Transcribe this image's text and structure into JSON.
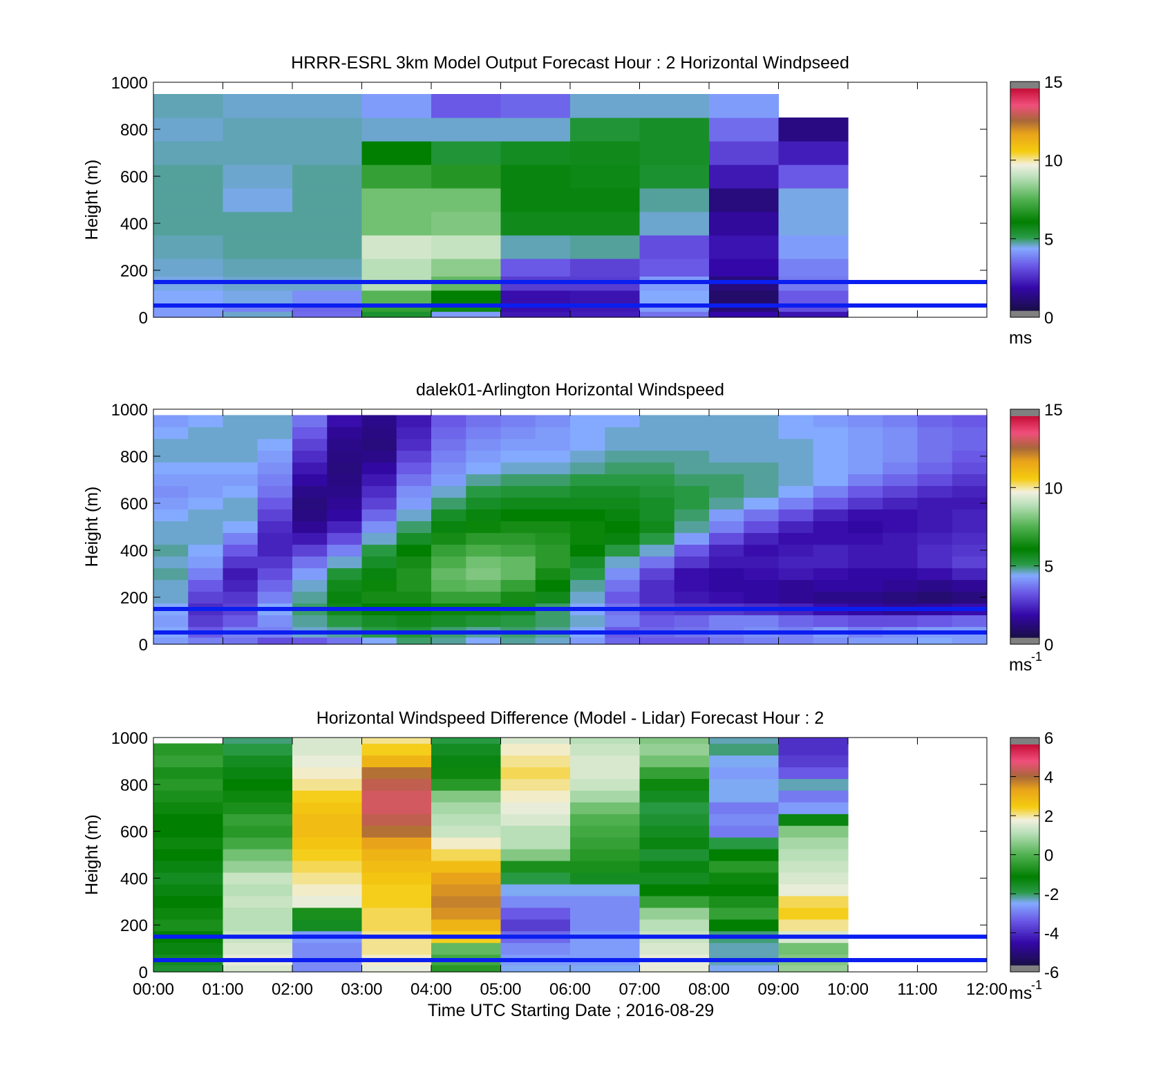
{
  "figure": {
    "xlabel": "Time UTC  Starting Date ; 2016-08-29",
    "x_ticks": [
      "00:00",
      "01:00",
      "02:00",
      "03:00",
      "04:00",
      "05:00",
      "06:00",
      "07:00",
      "08:00",
      "09:00",
      "10:00",
      "11:00",
      "12:00"
    ],
    "y_ticks": [
      "0",
      "200",
      "400",
      "600",
      "800",
      "1000"
    ],
    "guide_line_heights_m": [
      50,
      150
    ],
    "colors": {
      "guide_line": "#0a1ef0",
      "missing": "#808080"
    }
  },
  "colormap": [
    [
      0,
      "#1a0e4a"
    ],
    [
      0.1,
      "#3408a8"
    ],
    [
      0.2,
      "#6a58e6"
    ],
    [
      0.28,
      "#84aaff"
    ],
    [
      0.33,
      "#2a9a46"
    ],
    [
      0.4,
      "#017f01"
    ],
    [
      0.5,
      "#4fb04f"
    ],
    [
      0.6,
      "#b8dfb8"
    ],
    [
      0.66,
      "#f2f0e0"
    ],
    [
      0.72,
      "#f5cc10"
    ],
    [
      0.8,
      "#e9a31a"
    ],
    [
      0.86,
      "#a8673a"
    ],
    [
      0.93,
      "#f14f7c"
    ],
    [
      1,
      "#c8133c"
    ]
  ],
  "chart_data": [
    {
      "type": "heatmap",
      "title": "HRRR-ESRL 3km Model Output   Forecast Hour : 2 Horizontal Windpseed",
      "xlabel": "",
      "ylabel": "Height (m)",
      "x_range": [
        "00:00",
        "12:00"
      ],
      "ylim": [
        0,
        1000
      ],
      "colorbar": {
        "range": [
          0,
          15
        ],
        "ticks": [
          "0",
          "5",
          "10",
          "15"
        ],
        "unit": "ms"
      },
      "time_bins": [
        "00:00",
        "01:00",
        "02:00",
        "03:00",
        "04:00",
        "05:00",
        "06:00",
        "07:00",
        "08:00",
        "09:00"
      ],
      "height_bins_m": [
        10,
        40,
        80,
        150,
        200,
        300,
        400,
        500,
        600,
        700,
        800,
        900,
        1000
      ],
      "values": [
        [
          4.0,
          4.4,
          3.3,
          5.3,
          4.0,
          1.8,
          1.9,
          3.4,
          1.5,
          1.7
        ],
        [
          4.0,
          3.6,
          3.2,
          7.0,
          5.7,
          1.6,
          1.8,
          4.0,
          0.7,
          2.8
        ],
        [
          4.2,
          4.3,
          3.8,
          7.6,
          6.0,
          1.6,
          1.7,
          4.2,
          0.5,
          3.0
        ],
        [
          4.3,
          4.4,
          4.4,
          9.0,
          7.8,
          2.5,
          2.5,
          4.0,
          0.8,
          3.5
        ],
        [
          4.4,
          4.5,
          4.5,
          9.0,
          8.4,
          3.0,
          2.6,
          3.0,
          1.5,
          3.6
        ],
        [
          4.5,
          4.6,
          4.6,
          9.4,
          9.2,
          4.5,
          4.6,
          2.8,
          1.7,
          4.0
        ],
        [
          4.6,
          4.6,
          4.6,
          8.0,
          8.2,
          5.6,
          5.6,
          4.4,
          1.3,
          4.3
        ],
        [
          4.6,
          4.3,
          4.6,
          8.0,
          8.0,
          5.8,
          5.8,
          4.6,
          0.8,
          4.3
        ],
        [
          4.6,
          4.4,
          4.6,
          7.0,
          6.7,
          5.8,
          5.7,
          5.3,
          1.8,
          3.0
        ],
        [
          4.5,
          4.5,
          4.5,
          6.0,
          5.2,
          5.5,
          5.6,
          5.4,
          2.6,
          1.9
        ],
        [
          4.4,
          4.5,
          4.5,
          4.4,
          4.4,
          4.4,
          5.2,
          5.4,
          3.3,
          0.9
        ],
        [
          4.5,
          4.4,
          4.4,
          4.0,
          3.0,
          3.2,
          4.4,
          4.4,
          4.0,
          null
        ]
      ]
    },
    {
      "type": "heatmap",
      "title": "dalek01-Arlington  Horizontal Windspeed",
      "xlabel": "",
      "ylabel": "Height (m)",
      "x_range": [
        "00:00",
        "12:00"
      ],
      "ylim": [
        0,
        1000
      ],
      "colorbar": {
        "range": [
          0,
          15
        ],
        "ticks": [
          "0",
          "5",
          "10",
          "15"
        ],
        "unit": "ms",
        "unit_exponent": "-1"
      },
      "time_bins": [
        "00:00",
        "00:30",
        "01:00",
        "01:30",
        "02:00",
        "02:30",
        "03:00",
        "03:30",
        "04:00",
        "04:30",
        "05:00",
        "05:30",
        "06:00",
        "06:30",
        "07:00",
        "07:30",
        "08:00",
        "08:30",
        "09:00",
        "09:30",
        "10:00",
        "10:30",
        "11:00",
        "11:30"
      ],
      "height_bins_m": [
        10,
        50,
        100,
        150,
        200,
        250,
        300,
        350,
        400,
        450,
        500,
        550,
        600,
        650,
        700,
        750,
        800,
        850,
        900,
        950,
        1000
      ],
      "values": [
        [
          4.0,
          3.6,
          3.4,
          2.8,
          3.0,
          3.4,
          4.2,
          4.8,
          4.6,
          4.2,
          4.6,
          4.4,
          4.0,
          3.2,
          3.0,
          3.0,
          3.4,
          3.6,
          3.6,
          3.8,
          4.0,
          4.0,
          4.2,
          4.0
        ],
        [
          4.2,
          3.0,
          3.6,
          3.6,
          4.4,
          4.6,
          5.0,
          5.2,
          4.8,
          4.6,
          4.8,
          4.6,
          4.2,
          3.0,
          3.2,
          3.4,
          3.6,
          3.8,
          3.6,
          4.0,
          3.6,
          3.8,
          4.0,
          4.0
        ],
        [
          4.0,
          2.5,
          3.0,
          3.8,
          4.6,
          5.0,
          5.4,
          5.6,
          5.4,
          5.2,
          5.0,
          4.8,
          4.4,
          3.6,
          3.0,
          3.2,
          3.6,
          3.6,
          3.2,
          3.0,
          2.8,
          2.8,
          3.0,
          3.2
        ],
        [
          4.2,
          2.2,
          2.6,
          4.2,
          4.8,
          5.6,
          6.0,
          6.0,
          6.2,
          6.2,
          5.6,
          4.8,
          4.2,
          3.4,
          2.6,
          2.4,
          2.4,
          2.2,
          2.0,
          1.6,
          1.4,
          1.2,
          1.4,
          1.6
        ],
        [
          4.4,
          2.6,
          2.4,
          3.6,
          4.6,
          5.8,
          6.4,
          6.4,
          7.0,
          7.0,
          6.4,
          5.6,
          4.4,
          3.0,
          2.2,
          1.8,
          1.6,
          1.4,
          1.2,
          1.0,
          1.0,
          0.8,
          0.6,
          0.8
        ],
        [
          4.4,
          3.0,
          2.0,
          3.2,
          4.4,
          5.6,
          6.2,
          6.6,
          7.6,
          7.8,
          7.0,
          6.0,
          4.6,
          3.4,
          2.2,
          1.6,
          1.4,
          1.4,
          1.2,
          1.4,
          1.4,
          1.2,
          1.0,
          1.2
        ],
        [
          4.6,
          3.6,
          1.8,
          2.8,
          4.0,
          5.2,
          5.8,
          6.6,
          7.8,
          8.2,
          7.8,
          6.4,
          5.0,
          3.8,
          2.6,
          1.6,
          1.4,
          1.6,
          1.8,
          1.6,
          1.4,
          1.4,
          1.6,
          2.0
        ],
        [
          4.4,
          4.0,
          2.4,
          2.4,
          3.4,
          4.4,
          5.4,
          6.4,
          7.4,
          8.0,
          7.8,
          6.8,
          5.4,
          4.4,
          3.4,
          2.4,
          1.8,
          1.8,
          2.0,
          2.0,
          1.8,
          1.8,
          2.2,
          2.6
        ],
        [
          4.6,
          4.2,
          3.0,
          2.0,
          2.6,
          3.6,
          5.0,
          6.0,
          7.0,
          7.4,
          7.2,
          6.8,
          6.0,
          5.0,
          4.4,
          3.0,
          2.0,
          1.6,
          1.8,
          2.0,
          1.8,
          1.8,
          2.2,
          2.4
        ],
        [
          4.4,
          4.4,
          3.6,
          2.0,
          1.8,
          2.8,
          4.4,
          5.4,
          6.4,
          6.8,
          6.8,
          6.6,
          6.2,
          5.8,
          5.0,
          4.0,
          2.8,
          2.0,
          1.6,
          1.6,
          1.6,
          1.8,
          2.0,
          2.2
        ],
        [
          4.4,
          4.4,
          4.2,
          2.2,
          1.2,
          2.0,
          3.8,
          4.8,
          5.8,
          6.2,
          6.4,
          6.4,
          6.2,
          6.0,
          5.6,
          4.6,
          3.6,
          2.8,
          2.0,
          1.6,
          1.4,
          1.6,
          1.8,
          2.0
        ],
        [
          4.2,
          4.4,
          4.4,
          2.6,
          0.9,
          1.4,
          3.2,
          4.4,
          5.4,
          5.8,
          6.0,
          6.0,
          6.0,
          5.8,
          5.4,
          4.8,
          4.0,
          3.4,
          2.8,
          2.0,
          1.6,
          1.6,
          1.8,
          2.0
        ],
        [
          4.0,
          4.2,
          4.4,
          3.0,
          0.8,
          1.2,
          2.6,
          4.0,
          4.8,
          5.4,
          5.6,
          5.6,
          5.6,
          5.6,
          5.4,
          5.0,
          4.6,
          4.2,
          3.6,
          3.0,
          2.4,
          2.0,
          1.8,
          1.8
        ],
        [
          3.8,
          4.0,
          4.2,
          3.4,
          1.0,
          1.0,
          2.2,
          3.8,
          4.4,
          5.0,
          5.2,
          5.2,
          5.4,
          5.4,
          5.2,
          5.0,
          4.8,
          4.6,
          4.2,
          3.6,
          3.0,
          2.6,
          2.2,
          2.0
        ],
        [
          4.0,
          4.0,
          4.0,
          3.6,
          1.4,
          0.9,
          1.8,
          3.4,
          4.0,
          4.6,
          4.8,
          4.8,
          5.0,
          5.0,
          5.0,
          4.8,
          4.8,
          4.6,
          4.4,
          4.2,
          3.6,
          3.2,
          2.8,
          2.4
        ],
        [
          4.2,
          4.2,
          4.2,
          3.8,
          1.8,
          0.8,
          1.4,
          3.0,
          3.8,
          4.2,
          4.4,
          4.4,
          4.6,
          4.8,
          4.8,
          4.6,
          4.6,
          4.6,
          4.4,
          4.2,
          4.0,
          3.6,
          3.2,
          2.8
        ],
        [
          4.4,
          4.4,
          4.4,
          4.0,
          2.2,
          0.9,
          1.0,
          2.6,
          3.6,
          4.0,
          4.2,
          4.2,
          4.4,
          4.6,
          4.6,
          4.6,
          4.4,
          4.4,
          4.4,
          4.2,
          4.0,
          3.8,
          3.4,
          3.0
        ],
        [
          4.4,
          4.4,
          4.4,
          4.2,
          2.6,
          1.0,
          0.8,
          2.2,
          3.4,
          3.8,
          4.0,
          4.0,
          4.2,
          4.4,
          4.4,
          4.4,
          4.4,
          4.4,
          4.4,
          4.2,
          4.0,
          3.8,
          3.4,
          3.2
        ],
        [
          4.2,
          4.4,
          4.4,
          4.4,
          3.0,
          1.2,
          0.9,
          2.0,
          3.2,
          3.6,
          3.8,
          4.0,
          4.2,
          4.4,
          4.4,
          4.4,
          4.4,
          4.4,
          4.2,
          4.2,
          4.0,
          3.8,
          3.4,
          3.2
        ],
        [
          4.0,
          4.2,
          4.4,
          4.4,
          3.4,
          1.6,
          1.0,
          1.8,
          3.0,
          3.4,
          3.6,
          3.8,
          4.2,
          4.2,
          4.4,
          4.4,
          4.4,
          4.4,
          4.2,
          4.0,
          3.8,
          3.6,
          3.2,
          3.0
        ]
      ]
    },
    {
      "type": "heatmap",
      "title": "Horizontal Windspeed Difference (Model - Lidar) Forecast Hour : 2",
      "xlabel": "Time UTC  Starting Date ; 2016-08-29",
      "ylabel": "Height (m)",
      "x_range": [
        "00:00",
        "12:00"
      ],
      "ylim": [
        0,
        1000
      ],
      "colorbar": {
        "range": [
          -6,
          6
        ],
        "ticks": [
          "-6",
          "-4",
          "-2",
          "0",
          "2",
          "4",
          "6"
        ],
        "unit": "ms",
        "unit_exponent": "-1"
      },
      "time_bins": [
        "00:00",
        "01:00",
        "02:00",
        "03:00",
        "04:00",
        "05:00",
        "06:00",
        "07:00",
        "08:00",
        "09:00"
      ],
      "height_bins_m": [
        10,
        50,
        100,
        150,
        200,
        250,
        300,
        350,
        400,
        450,
        500,
        550,
        600,
        650,
        700,
        750,
        800,
        850,
        900,
        950,
        1000
      ],
      "values": [
        [
          -1.8,
          1.6,
          -3.0,
          1.8,
          -0.6,
          -2.6,
          -2.6,
          1.8,
          -2.6,
          0.8
        ],
        [
          -1.6,
          1.8,
          -3.0,
          2.0,
          -0.2,
          -2.8,
          -2.8,
          1.8,
          -2.4,
          0.6
        ],
        [
          -1.4,
          1.6,
          -3.0,
          2.2,
          0.2,
          -3.0,
          -2.8,
          1.6,
          -2.4,
          0.4
        ],
        [
          -1.2,
          1.4,
          -2.8,
          2.2,
          2.6,
          -3.4,
          -2.8,
          1.4,
          -2.2,
          1.6
        ],
        [
          -0.8,
          1.2,
          -1.6,
          2.4,
          3.2,
          -4.0,
          -3.0,
          1.2,
          -1.2,
          2.2
        ],
        [
          -1.0,
          1.2,
          -0.8,
          2.4,
          3.8,
          -3.6,
          -3.0,
          0.8,
          -0.4,
          2.6
        ],
        [
          -1.2,
          1.4,
          1.8,
          2.6,
          4.0,
          -3.0,
          -3.0,
          -0.4,
          -0.8,
          2.4
        ],
        [
          -1.4,
          1.2,
          2.0,
          2.6,
          3.8,
          -2.6,
          -2.6,
          -1.2,
          -1.2,
          1.8
        ],
        [
          -1.6,
          1.4,
          2.2,
          2.8,
          3.6,
          -2.0,
          -1.6,
          -1.6,
          -1.0,
          1.6
        ],
        [
          -1.4,
          0.8,
          2.4,
          3.0,
          3.0,
          -0.8,
          -0.8,
          -1.4,
          -0.6,
          1.4
        ],
        [
          -1.2,
          0.4,
          2.6,
          3.2,
          2.4,
          0.6,
          -0.6,
          -1.8,
          -1.2,
          1.2
        ],
        [
          -1.0,
          -0.2,
          2.8,
          3.6,
          2.0,
          1.2,
          -0.4,
          -1.4,
          -2.0,
          1.0
        ],
        [
          -1.2,
          -0.6,
          3.0,
          4.2,
          1.4,
          1.2,
          -0.2,
          -1.6,
          -3.2,
          0.6
        ],
        [
          -1.2,
          -0.4,
          3.0,
          4.6,
          1.2,
          1.6,
          0.0,
          -1.8,
          -3.0,
          -1.4
        ],
        [
          -1.0,
          -0.8,
          2.8,
          4.8,
          1.0,
          1.8,
          0.4,
          -2.0,
          -3.2,
          -2.8
        ],
        [
          -0.8,
          -1.0,
          2.6,
          4.8,
          0.6,
          2.0,
          1.0,
          -1.6,
          -2.6,
          -3.2
        ],
        [
          -0.6,
          -1.2,
          2.2,
          4.6,
          -0.6,
          2.2,
          1.4,
          -1.0,
          -2.6,
          -2.4
        ],
        [
          -0.8,
          -1.4,
          2.0,
          4.2,
          -1.0,
          2.4,
          1.6,
          -0.4,
          -2.8,
          -3.6
        ],
        [
          -0.4,
          -1.6,
          1.8,
          3.2,
          -1.4,
          2.2,
          1.6,
          0.4,
          -2.6,
          -4.0
        ],
        [
          -0.6,
          -2.0,
          1.6,
          2.6,
          -1.6,
          2.0,
          1.4,
          0.8,
          -2.2,
          -4.2
        ],
        [
          null,
          -2.2,
          1.6,
          2.2,
          -2.0,
          1.6,
          1.2,
          0.6,
          -2.4,
          -4.2
        ]
      ]
    }
  ]
}
